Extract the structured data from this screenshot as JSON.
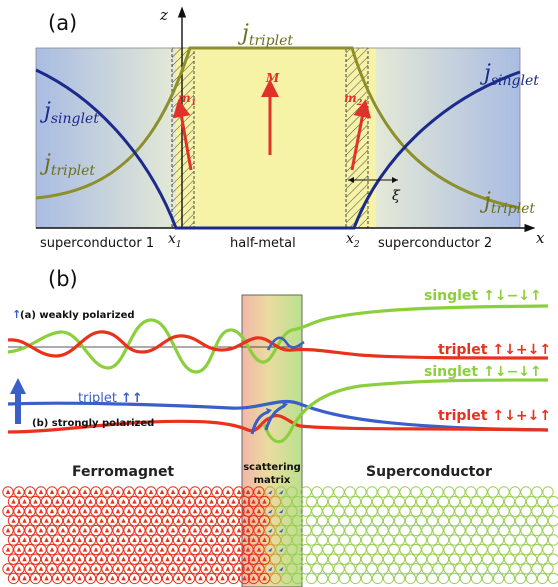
{
  "panel_a": {
    "label": "(a)",
    "axis_z": "z",
    "axis_x": "x",
    "j_triplet_top": {
      "j": "j",
      "sub": "triplet"
    },
    "j_singlet_left": {
      "j": "j",
      "sub": "singlet"
    },
    "j_triplet_left": {
      "j": "j",
      "sub": "triplet"
    },
    "j_singlet_right": {
      "j": "j",
      "sub": "singlet"
    },
    "j_triplet_right": {
      "j": "j",
      "sub": "triplet"
    },
    "m1": {
      "m": "m",
      "sub": "1"
    },
    "m2": {
      "m": "m",
      "sub": "2"
    },
    "M": "M",
    "xi": "ξ",
    "x1": {
      "x": "x",
      "sub": "1"
    },
    "x2": {
      "x": "x",
      "sub": "2"
    },
    "region_left": "superconductor 1",
    "region_mid": "half-metal",
    "region_right": "superconductor 2",
    "colors": {
      "sc_blue": "#a9bfe3",
      "halfmetal_yellow": "#f6f2a4",
      "singlet_curve": "#1c2a8c",
      "triplet_curve": "#8c8c2a",
      "arrow_red": "#e0322a"
    }
  },
  "panel_b": {
    "label": "(b)",
    "weak_arrow": "↑",
    "weak_label": "(a) weakly polarized",
    "strong_label": "(b) strongly polarized",
    "triplet_in": "triplet",
    "triplet_in_arrows": "↑↑",
    "out_singlet_1": {
      "word": "singlet",
      "formula": "↑↓−↓↑"
    },
    "out_triplet_1": {
      "word": "triplet",
      "formula": "↑↓+↓↑"
    },
    "out_singlet_2": {
      "word": "singlet",
      "formula": "↑↓−↓↑"
    },
    "out_triplet_2": {
      "word": "triplet",
      "formula": "↑↓+↓↑"
    },
    "scattering_line1": "scattering",
    "scattering_line2": "matrix",
    "ferromagnet": "Ferromagnet",
    "superconductor": "Superconductor",
    "colors": {
      "green": "#8ccf3c",
      "red": "#e8321e",
      "blue": "#3a5fc8",
      "lattice_red": "#e8321e",
      "lattice_green": "#9ccf5a"
    }
  }
}
